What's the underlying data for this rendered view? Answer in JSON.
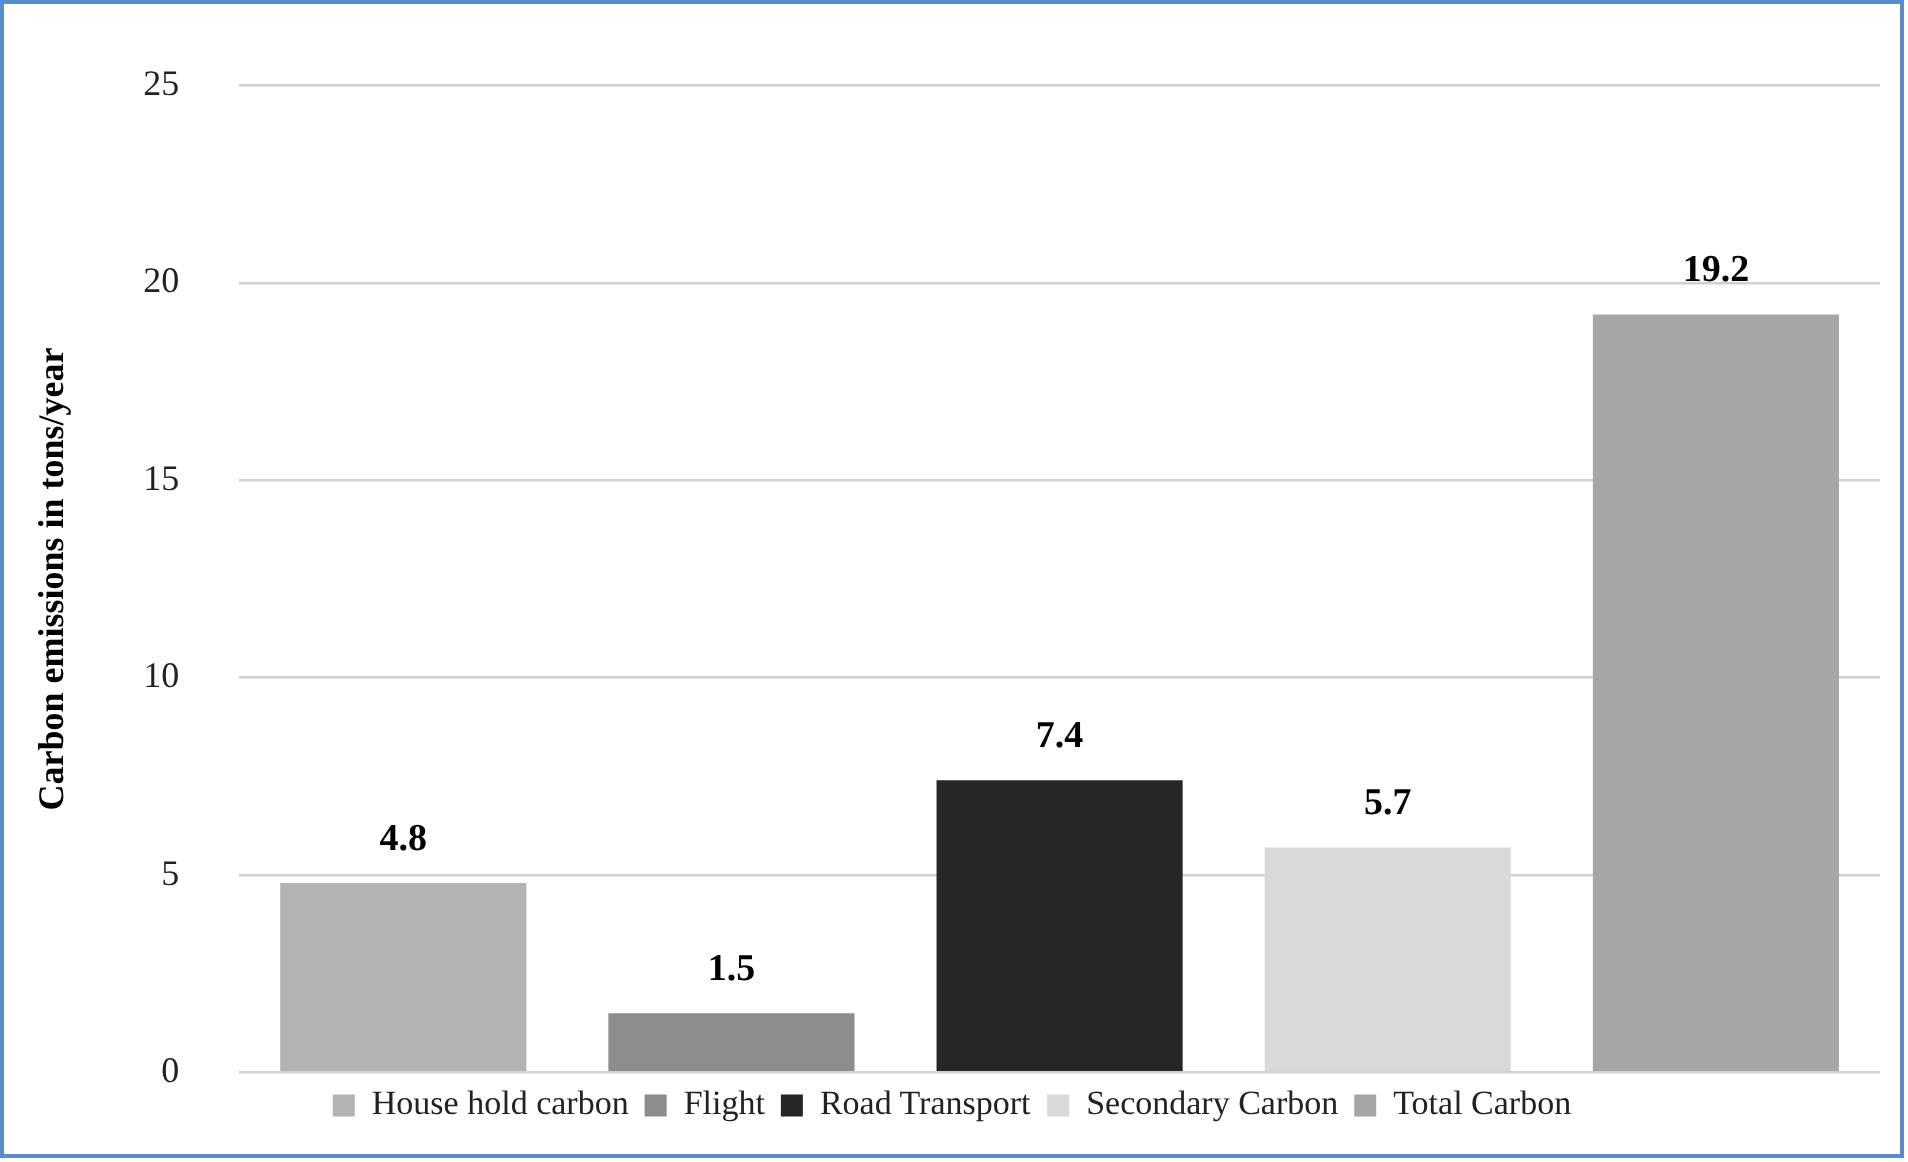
{
  "chart_data": {
    "type": "bar",
    "ylabel": "Carbon emissions in tons/year",
    "categories": [
      null,
      null,
      null,
      null,
      null
    ],
    "series": [
      {
        "name": "House hold carbon",
        "color": "#b3b3b3",
        "values": [
          4.8,
          null,
          null,
          null,
          null
        ]
      },
      {
        "name": "Flight",
        "color": "#8c8c8c",
        "values": [
          null,
          1.5,
          null,
          null,
          null
        ]
      },
      {
        "name": "Road Transport",
        "color": "#262626",
        "values": [
          null,
          null,
          7.4,
          null,
          null
        ]
      },
      {
        "name": "Secondary Carbon",
        "color": "#d9d9d9",
        "values": [
          null,
          null,
          null,
          5.7,
          null
        ]
      },
      {
        "name": "Total Carbon",
        "color": "#a6a6a6",
        "values": [
          null,
          null,
          null,
          null,
          19.2
        ]
      }
    ],
    "ylim": [
      0,
      25
    ],
    "yticks": [
      0,
      5,
      10,
      15,
      20,
      25
    ],
    "grid": "y",
    "legend": "bottom",
    "data_labels": true
  }
}
